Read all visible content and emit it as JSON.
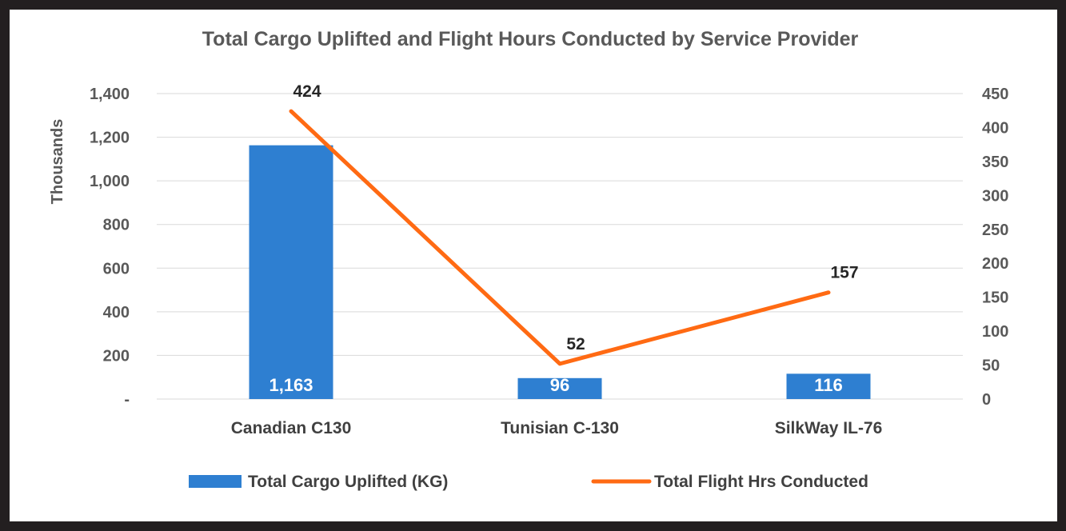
{
  "chart_data": {
    "type": "bar",
    "title": "Total Cargo Uplifted and Flight Hours Conducted by Service Provider",
    "categories": [
      "Canadian C130",
      "Tunisian C-130",
      "SilkWay IL-76"
    ],
    "y_left": {
      "label": "Thousands",
      "ylim": [
        0,
        1400
      ],
      "ticks": [
        0,
        200,
        400,
        600,
        800,
        1000,
        1200,
        1400
      ],
      "tick_labels": [
        "-",
        "200",
        "400",
        "600",
        "800",
        "1,000",
        "1,200",
        "1,400"
      ]
    },
    "y_right": {
      "ylim": [
        0,
        450
      ],
      "ticks": [
        0,
        50,
        100,
        150,
        200,
        250,
        300,
        350,
        400,
        450
      ],
      "tick_labels": [
        "0",
        "50",
        "100",
        "150",
        "200",
        "250",
        "300",
        "350",
        "400",
        "450"
      ]
    },
    "series": [
      {
        "name": "Total Cargo Uplifted (KG)",
        "kind": "bar",
        "axis": "left",
        "color": "#2e7fd1",
        "values": [
          1163,
          96,
          116
        ],
        "labels": [
          "1,163",
          "96",
          "116"
        ]
      },
      {
        "name": "Total Flight Hrs Conducted",
        "kind": "line",
        "axis": "right",
        "color": "#ff6a13",
        "values": [
          424,
          52,
          157
        ],
        "labels": [
          "424",
          "52",
          "157"
        ]
      }
    ],
    "grid": true,
    "legend": "bottom"
  }
}
